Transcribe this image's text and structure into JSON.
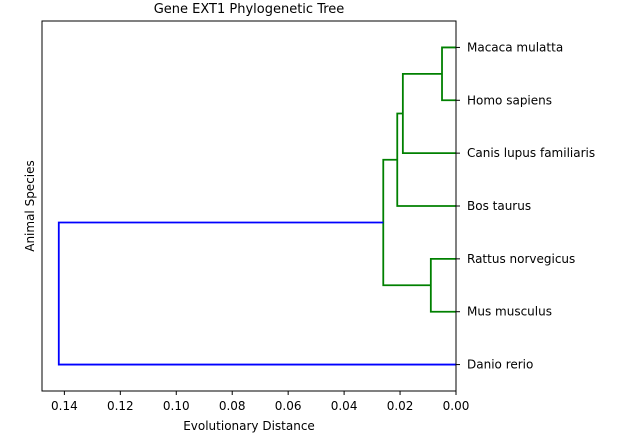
{
  "chart_data": {
    "type": "dendrogram",
    "title": "Gene EXT1 Phylogenetic Tree",
    "xlabel": "Evolutionary Distance",
    "ylabel": "Animal Species",
    "xlim": [
      0.148,
      0.0
    ],
    "x_ticks": [
      {
        "value": 0.14,
        "label": "0.14"
      },
      {
        "value": 0.12,
        "label": "0.12"
      },
      {
        "value": 0.1,
        "label": "0.10"
      },
      {
        "value": 0.08,
        "label": "0.08"
      },
      {
        "value": 0.06,
        "label": "0.06"
      },
      {
        "value": 0.04,
        "label": "0.04"
      },
      {
        "value": 0.02,
        "label": "0.02"
      },
      {
        "value": 0.0,
        "label": "0.00"
      }
    ],
    "leaves": [
      "Macaca mulatta",
      "Homo sapiens",
      "Canis lupus familiaris",
      "Bos taurus",
      "Rattus norvegicus",
      "Mus musculus",
      "Danio rerio"
    ],
    "colors": {
      "cluster": "#008000",
      "root": "#0000ff"
    },
    "merges": [
      {
        "id": "n1",
        "children": [
          "Macaca mulatta",
          "Homo sapiens"
        ],
        "height": 0.005,
        "color": "cluster"
      },
      {
        "id": "n2",
        "children": [
          "n1",
          "Canis lupus familiaris"
        ],
        "height": 0.019,
        "color": "cluster"
      },
      {
        "id": "n3",
        "children": [
          "n2",
          "Bos taurus"
        ],
        "height": 0.021,
        "color": "cluster"
      },
      {
        "id": "n4",
        "children": [
          "Rattus norvegicus",
          "Mus musculus"
        ],
        "height": 0.009,
        "color": "cluster"
      },
      {
        "id": "n5",
        "children": [
          "n3",
          "n4"
        ],
        "height": 0.026,
        "color": "cluster"
      },
      {
        "id": "n6",
        "children": [
          "n5",
          "Danio rerio"
        ],
        "height": 0.142,
        "color": "root"
      }
    ]
  }
}
